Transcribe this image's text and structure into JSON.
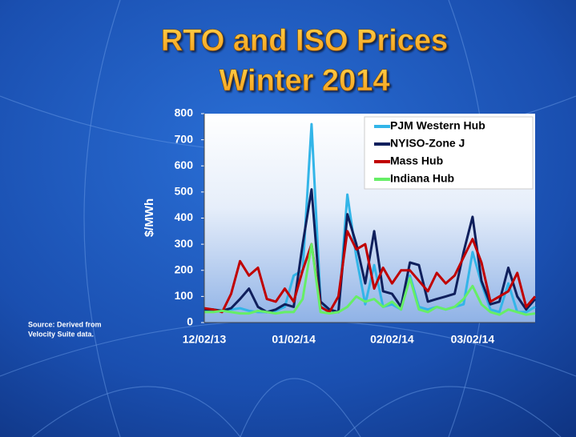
{
  "chart_data": {
    "type": "line",
    "title": "RTO and ISO Prices",
    "subtitle": "Winter 2014",
    "y_label": "$/MWh",
    "source": [
      "Source: Derived from",
      "Velocity Suite data."
    ],
    "categories": [
      "12/02/13",
      null,
      null,
      null,
      null,
      null,
      null,
      null,
      null,
      null,
      "01/02/14",
      null,
      null,
      null,
      null,
      null,
      null,
      null,
      null,
      null,
      null,
      "02/02/14",
      null,
      null,
      null,
      null,
      null,
      null,
      null,
      null,
      "03/02/14",
      null,
      null,
      null,
      null,
      null,
      null,
      null
    ],
    "series": [
      {
        "name": "PJM Western Hub",
        "color": "#33b5e8",
        "values": [
          50,
          45,
          45,
          50,
          55,
          45,
          40,
          40,
          45,
          60,
          180,
          200,
          760,
          80,
          40,
          40,
          490,
          250,
          70,
          220,
          60,
          70,
          50,
          180,
          60,
          50,
          60,
          50,
          60,
          70,
          270,
          150,
          50,
          40,
          150,
          40,
          40,
          60
        ]
      },
      {
        "name": "NYISO-Zone J",
        "color": "#0f1f5c",
        "values": [
          50,
          50,
          45,
          55,
          90,
          130,
          60,
          40,
          50,
          70,
          60,
          300,
          510,
          80,
          50,
          40,
          415,
          300,
          150,
          350,
          120,
          110,
          60,
          230,
          220,
          80,
          90,
          100,
          110,
          270,
          405,
          160,
          70,
          80,
          210,
          100,
          50,
          90
        ]
      },
      {
        "name": "Mass Hub",
        "color": "#c00000",
        "values": [
          55,
          50,
          40,
          110,
          235,
          180,
          210,
          90,
          80,
          130,
          80,
          200,
          300,
          60,
          40,
          100,
          350,
          280,
          300,
          130,
          210,
          150,
          200,
          200,
          160,
          120,
          190,
          150,
          180,
          250,
          320,
          230,
          80,
          100,
          120,
          190,
          60,
          100
        ]
      },
      {
        "name": "Indiana Hub",
        "color": "#66ee66",
        "values": [
          40,
          40,
          45,
          40,
          35,
          35,
          45,
          40,
          35,
          40,
          40,
          90,
          300,
          40,
          35,
          40,
          60,
          100,
          80,
          90,
          60,
          80,
          50,
          170,
          50,
          40,
          60,
          50,
          60,
          90,
          140,
          70,
          40,
          30,
          50,
          40,
          30,
          35
        ]
      }
    ],
    "ylim": [
      0,
      800
    ],
    "yticks": [
      0,
      100,
      200,
      300,
      400,
      500,
      600,
      700,
      800
    ],
    "grid": false,
    "legend": "upper right"
  }
}
